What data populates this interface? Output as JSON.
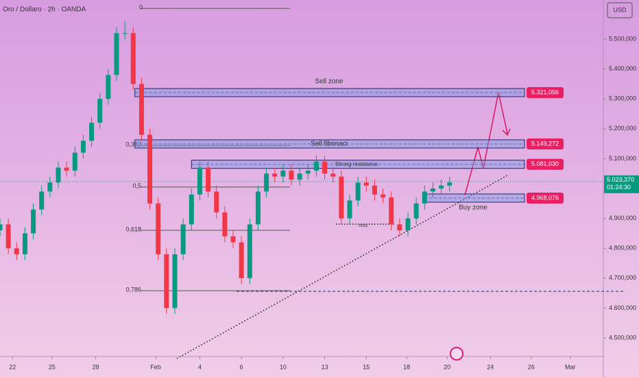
{
  "chart_data": {
    "type": "candlestick",
    "title": "Oro / Dollaro · 2h · OANDA",
    "currency": "USD",
    "x": [
      0,
      2,
      4,
      6,
      8,
      10,
      12,
      14,
      16,
      18,
      20,
      22,
      24,
      26,
      28,
      30,
      32,
      34,
      36,
      38,
      40,
      42,
      44,
      46,
      48,
      50,
      52,
      54,
      56,
      58,
      60,
      62,
      64,
      66,
      68,
      70,
      72,
      74,
      76,
      78,
      80,
      82,
      84,
      86,
      88,
      90,
      92,
      94,
      96,
      98,
      100,
      102,
      104,
      106,
      108
    ],
    "open": [
      4860000,
      4880000,
      4800000,
      4780000,
      4850000,
      4930000,
      4990000,
      5020000,
      5070000,
      5060000,
      5120000,
      5160000,
      5220000,
      5300000,
      5380000,
      5520000,
      5520000,
      5350000,
      5180000,
      4950000,
      4780000,
      4600000,
      4780000,
      4880000,
      4980000,
      5070000,
      4990000,
      4920000,
      4840000,
      4820000,
      4700000,
      4880000,
      4990000,
      5050000,
      5040000,
      5060000,
      5030000,
      5050000,
      5060000,
      5090000,
      5050000,
      5040000,
      4900000,
      4960000,
      5020000,
      5010000,
      4980000,
      4970000,
      4880000,
      4860000,
      4900000,
      4950000,
      4990000,
      5000000,
      5010000
    ],
    "close": [
      4880000,
      4800000,
      4780000,
      4850000,
      4930000,
      4990000,
      5020000,
      5070000,
      5060000,
      5120000,
      5160000,
      5220000,
      5300000,
      5380000,
      5520000,
      5520000,
      5350000,
      5180000,
      4950000,
      4780000,
      4600000,
      4780000,
      4880000,
      4980000,
      5070000,
      4990000,
      4920000,
      4840000,
      4820000,
      4700000,
      4880000,
      4990000,
      5050000,
      5040000,
      5060000,
      5030000,
      5050000,
      5060000,
      5090000,
      5050000,
      5040000,
      4900000,
      4960000,
      5020000,
      5010000,
      4980000,
      4970000,
      4880000,
      4860000,
      4900000,
      4950000,
      4990000,
      5000000,
      5010000,
      5020000
    ],
    "high": [
      4900000,
      4900000,
      4820000,
      4870000,
      4950000,
      5010000,
      5040000,
      5090000,
      5090000,
      5140000,
      5180000,
      5240000,
      5320000,
      5400000,
      5540000,
      5560000,
      5540000,
      5370000,
      5200000,
      4970000,
      4800000,
      4800000,
      4900000,
      5000000,
      5090000,
      5090000,
      5010000,
      4940000,
      4860000,
      4840000,
      4900000,
      5010000,
      5070000,
      5070000,
      5080000,
      5080000,
      5070000,
      5080000,
      5110000,
      5110000,
      5070000,
      5060000,
      4980000,
      5040000,
      5040000,
      5030000,
      5000000,
      4990000,
      4900000,
      4920000,
      4970000,
      5010000,
      5020000,
      5030000,
      5040000
    ],
    "low": [
      4840000,
      4780000,
      4760000,
      4760000,
      4830000,
      4910000,
      4970000,
      5000000,
      5040000,
      5040000,
      5100000,
      5140000,
      5200000,
      5280000,
      5360000,
      5500000,
      5330000,
      5160000,
      4930000,
      4760000,
      4580000,
      4580000,
      4760000,
      4860000,
      4960000,
      4970000,
      4900000,
      4820000,
      4800000,
      4680000,
      4680000,
      4860000,
      4970000,
      5020000,
      5020000,
      5010000,
      5010000,
      5030000,
      5040000,
      5030000,
      5020000,
      4880000,
      4880000,
      4940000,
      4990000,
      4960000,
      4950000,
      4860000,
      4840000,
      4840000,
      4880000,
      4930000,
      4970000,
      4980000,
      4990000
    ],
    "up_color": "#089981",
    "down_color": "#f23645",
    "xlim": [
      0,
      140
    ],
    "xticks": [
      {
        "value": 3,
        "label": "22"
      },
      {
        "value": 12.5,
        "label": "25"
      },
      {
        "value": 23,
        "label": "28"
      },
      {
        "value": 37.4,
        "label": "Feb"
      },
      {
        "value": 48,
        "label": "4"
      },
      {
        "value": 58,
        "label": "6"
      },
      {
        "value": 68,
        "label": "10"
      },
      {
        "value": 78,
        "label": "13"
      },
      {
        "value": 88,
        "label": "15"
      },
      {
        "value": 97.7,
        "label": "18"
      },
      {
        "value": 107.4,
        "label": "20"
      },
      {
        "value": 117.8,
        "label": "24"
      },
      {
        "value": 127.6,
        "label": "26"
      },
      {
        "value": 137,
        "label": "Mar"
      }
    ],
    "ylim": [
      4438000,
      5631000
    ],
    "yticks": [
      {
        "value": 4500000,
        "label": "4.500,000"
      },
      {
        "value": 4600000,
        "label": "4.600,000"
      },
      {
        "value": 4700000,
        "label": "4.700,000"
      },
      {
        "value": 4800000,
        "label": "4.800,000"
      },
      {
        "value": 4900000,
        "label": "4.900,000"
      },
      {
        "value": 5100000,
        "label": "5.100,000"
      },
      {
        "value": 5200000,
        "label": "5.200,000"
      },
      {
        "value": 5300000,
        "label": "5.300,000"
      },
      {
        "value": 5400000,
        "label": "5.400,000"
      },
      {
        "value": 5500000,
        "label": "5.500,000"
      }
    ],
    "current_price": {
      "value": 5023370,
      "label": "5.023,370",
      "countdown": "01:24:30"
    },
    "zones": [
      {
        "value": 5321056,
        "label": "5.321,056",
        "from": 32.4,
        "name": "Sell zone"
      },
      {
        "value": 5149272,
        "label": "5.149,272",
        "from": 32.4,
        "name": "Sell fibonaci"
      },
      {
        "value": 5081030,
        "label": "5.081,030",
        "from": 46,
        "name": "Strong resistance"
      },
      {
        "value": 4968076,
        "label": "4.968,076",
        "from": 102,
        "name": "Buy zone"
      }
    ],
    "fib": [
      {
        "label": "0",
        "value": 5603000
      },
      {
        "label": "0,382",
        "value": 5144000
      },
      {
        "label": "0,5",
        "value": 5005000
      },
      {
        "label": "0,618",
        "value": 4860000
      },
      {
        "label": "0,786",
        "value": 4658000
      }
    ],
    "mss": "mss"
  }
}
